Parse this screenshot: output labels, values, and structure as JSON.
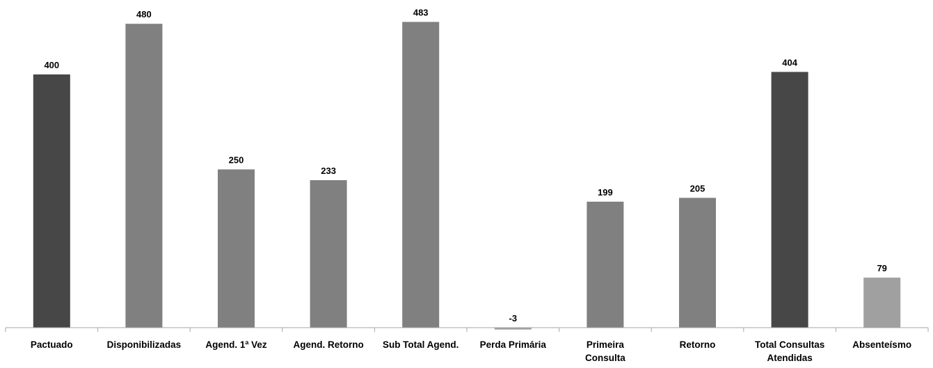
{
  "chart_data": {
    "type": "bar",
    "title": "",
    "xlabel": "",
    "ylabel": "",
    "ylim": [
      -10,
      500
    ],
    "grid": false,
    "legend": "none",
    "categories": [
      [
        "Pactuado"
      ],
      [
        "Disponibilizadas"
      ],
      [
        "Agend. 1ª Vez"
      ],
      [
        "Agend. Retorno"
      ],
      [
        "Sub Total Agend."
      ],
      [
        "Perda Primária"
      ],
      [
        "Primeira",
        "Consulta"
      ],
      [
        "Retorno"
      ],
      [
        "Total Consultas",
        "Atendidas"
      ],
      [
        "Absenteísmo"
      ]
    ],
    "values": [
      400,
      480,
      250,
      233,
      483,
      -3,
      199,
      205,
      404,
      79
    ],
    "value_labels": [
      "400",
      "480",
      "250",
      "233",
      "483",
      "-3",
      "199",
      "205",
      "404",
      "79"
    ],
    "bar_colors": [
      "#474747",
      "#808080",
      "#808080",
      "#808080",
      "#808080",
      "#a0a0a0",
      "#808080",
      "#808080",
      "#474747",
      "#a0a0a0"
    ],
    "axis_color": "#a6a6a6"
  }
}
